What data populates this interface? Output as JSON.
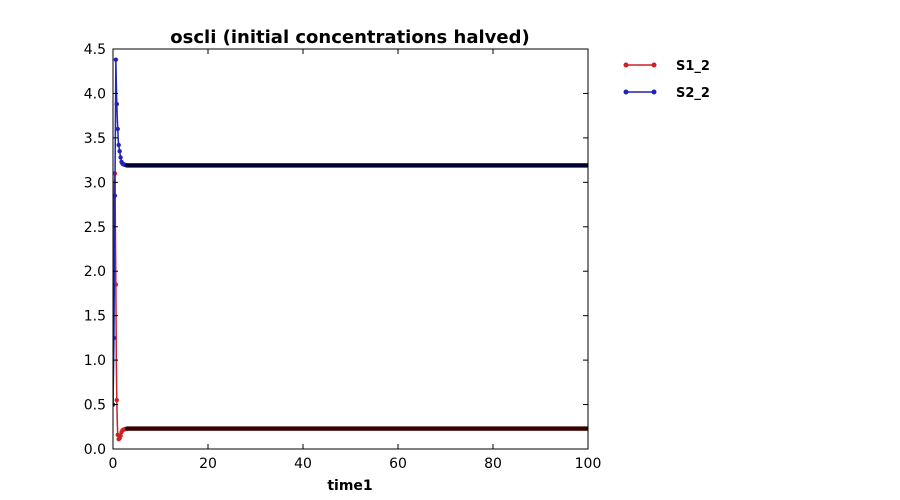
{
  "chart_data": {
    "type": "line",
    "title": "oscli  (initial concentrations halved)",
    "xlabel": "time1",
    "ylabel": "",
    "xlim": [
      0,
      100
    ],
    "ylim": [
      0,
      4.5
    ],
    "xticks": [
      "0",
      "20",
      "40",
      "60",
      "80",
      "100"
    ],
    "yticks": [
      "0.0",
      "0.5",
      "1.0",
      "1.5",
      "2.0",
      "2.5",
      "3.0",
      "3.5",
      "4.0",
      "4.5"
    ],
    "grid": false,
    "legend": "outside-right-top",
    "series": [
      {
        "name": "S1_2",
        "color": "#cc2222",
        "x": [
          0,
          0.1,
          0.2,
          0.3,
          0.4,
          0.5,
          0.6,
          0.7,
          0.8,
          0.9,
          1.0,
          1.2,
          1.4,
          1.6,
          1.8,
          2.0,
          2.3,
          2.6,
          3.0,
          3.5,
          4,
          5,
          6,
          8,
          10,
          15,
          20,
          30,
          40,
          50,
          60,
          70,
          80,
          90,
          100
        ],
        "y": [
          0.5,
          1.4,
          2.4,
          3.0,
          3.1,
          2.5,
          1.85,
          1.0,
          0.55,
          0.3,
          0.16,
          0.11,
          0.12,
          0.15,
          0.19,
          0.21,
          0.22,
          0.225,
          0.23,
          0.23,
          0.23,
          0.23,
          0.23,
          0.23,
          0.23,
          0.23,
          0.23,
          0.23,
          0.23,
          0.23,
          0.23,
          0.23,
          0.23,
          0.23,
          0.23
        ]
      },
      {
        "name": "S2_2",
        "color": "#2222bb",
        "x": [
          0,
          0.1,
          0.2,
          0.3,
          0.4,
          0.5,
          0.6,
          0.7,
          0.8,
          0.9,
          1.0,
          1.1,
          1.2,
          1.4,
          1.6,
          1.8,
          2.0,
          2.3,
          2.6,
          3.0,
          3.5,
          4,
          5,
          6,
          8,
          10,
          15,
          20,
          30,
          40,
          50,
          60,
          70,
          80,
          90,
          100
        ],
        "y": [
          0.5,
          0.85,
          1.25,
          2.0,
          2.85,
          3.6,
          4.38,
          4.1,
          3.88,
          3.72,
          3.6,
          3.48,
          3.42,
          3.35,
          3.28,
          3.23,
          3.21,
          3.2,
          3.195,
          3.19,
          3.19,
          3.19,
          3.19,
          3.19,
          3.19,
          3.19,
          3.19,
          3.19,
          3.19,
          3.19,
          3.19,
          3.19,
          3.19,
          3.19,
          3.19,
          3.19
        ]
      }
    ]
  }
}
